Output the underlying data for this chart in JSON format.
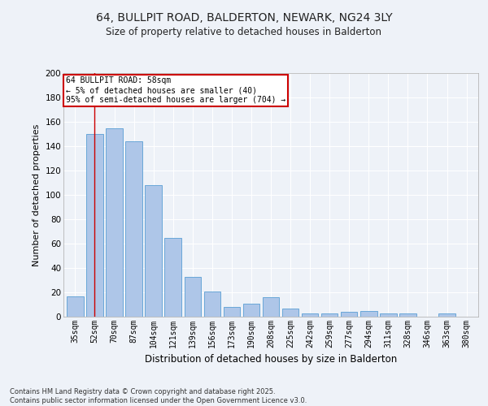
{
  "title": "64, BULLPIT ROAD, BALDERTON, NEWARK, NG24 3LY",
  "subtitle": "Size of property relative to detached houses in Balderton",
  "xlabel": "Distribution of detached houses by size in Balderton",
  "ylabel": "Number of detached properties",
  "categories": [
    "35sqm",
    "52sqm",
    "70sqm",
    "87sqm",
    "104sqm",
    "121sqm",
    "139sqm",
    "156sqm",
    "173sqm",
    "190sqm",
    "208sqm",
    "225sqm",
    "242sqm",
    "259sqm",
    "277sqm",
    "294sqm",
    "311sqm",
    "328sqm",
    "346sqm",
    "363sqm",
    "380sqm"
  ],
  "values": [
    17,
    150,
    155,
    144,
    108,
    65,
    33,
    21,
    8,
    11,
    16,
    7,
    3,
    3,
    4,
    5,
    3,
    3,
    0,
    3,
    0
  ],
  "bar_color": "#aec6e8",
  "bar_edge_color": "#5a9fd4",
  "ylim": [
    0,
    200
  ],
  "yticks": [
    0,
    20,
    40,
    60,
    80,
    100,
    120,
    140,
    160,
    180,
    200
  ],
  "vline_x": 1,
  "vline_color": "#cc0000",
  "annotation_title": "64 BULLPIT ROAD: 58sqm",
  "annotation_line1": "← 5% of detached houses are smaller (40)",
  "annotation_line2": "95% of semi-detached houses are larger (704) →",
  "annotation_box_color": "#cc0000",
  "background_color": "#eef2f8",
  "grid_color": "#ffffff",
  "footer_line1": "Contains HM Land Registry data © Crown copyright and database right 2025.",
  "footer_line2": "Contains public sector information licensed under the Open Government Licence v3.0.",
  "title_fontsize": 10,
  "subtitle_fontsize": 8.5,
  "tick_fontsize": 7,
  "ylabel_fontsize": 8,
  "xlabel_fontsize": 8.5
}
